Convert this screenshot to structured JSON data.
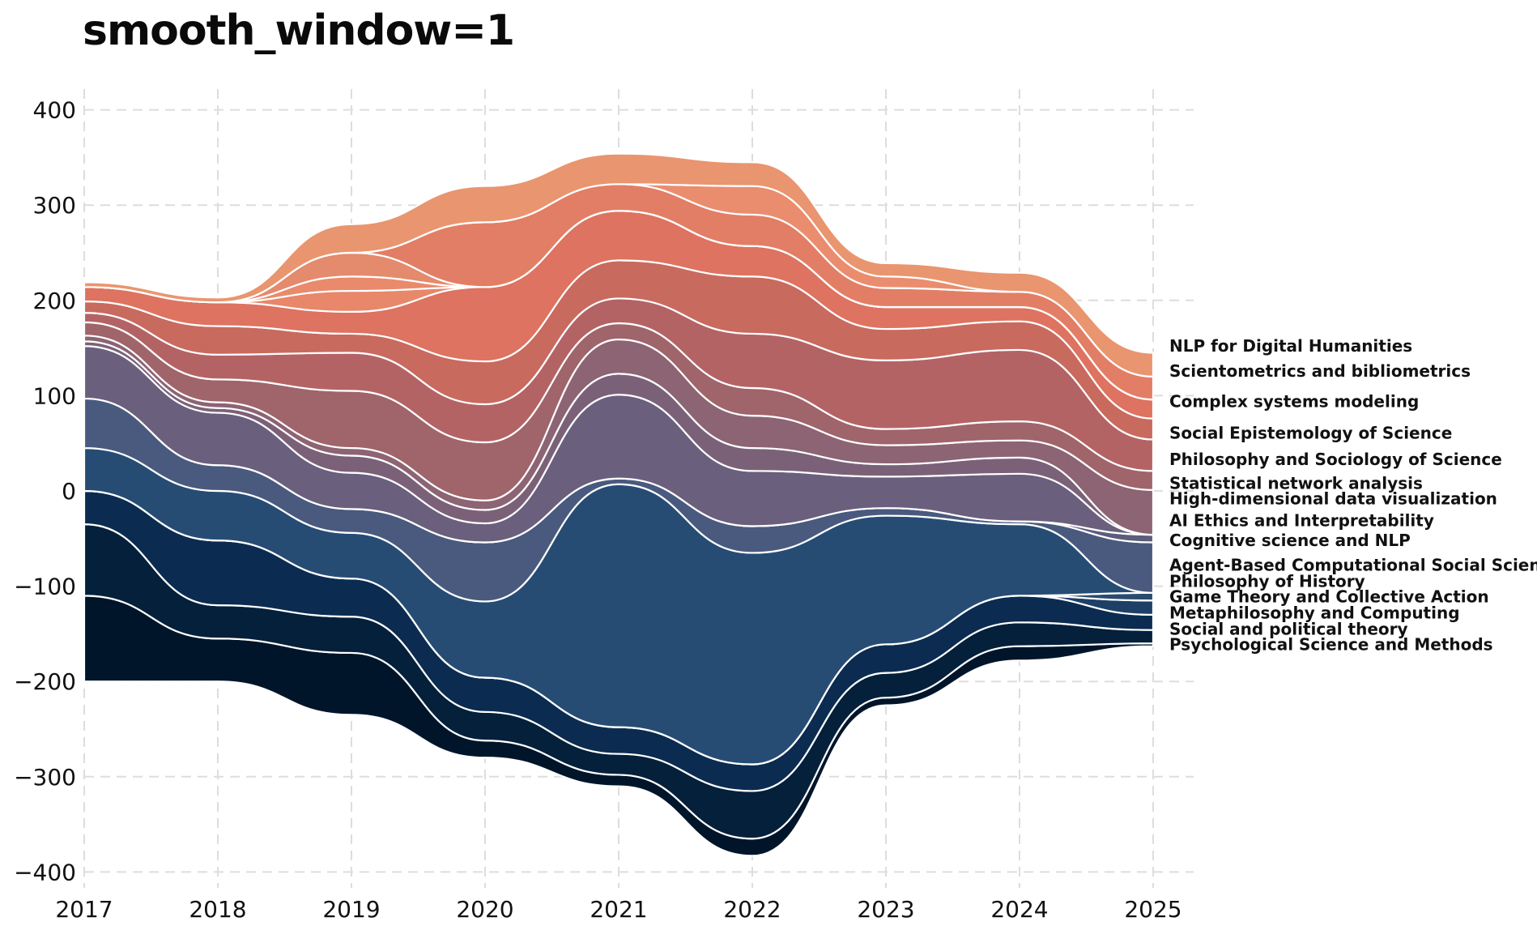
{
  "chart_data": {
    "type": "area",
    "title": "smooth_window=1",
    "xlabel": "",
    "ylabel": "",
    "x": [
      2017,
      2018,
      2019,
      2020,
      2021,
      2022,
      2023,
      2024,
      2025
    ],
    "xlim": [
      2017,
      2025
    ],
    "ylim": [
      -420,
      420
    ],
    "yticks": [
      400,
      300,
      200,
      100,
      0,
      -100,
      -200,
      -300,
      -400
    ],
    "ytick_labels": [
      "400",
      "300",
      "200",
      "100",
      "0",
      "−100",
      "−200",
      "−300",
      "−400"
    ],
    "xtick_labels": [
      "2017",
      "2018",
      "2019",
      "2020",
      "2021",
      "2022",
      "2023",
      "2024",
      "2025"
    ],
    "grid": true,
    "legend_placement": "right (labels at stream ends)",
    "baseline": [
      -200,
      -200,
      -235,
      -280,
      -310,
      -383,
      -225,
      -178,
      -163
    ],
    "series": [
      {
        "name": "Psychological Science and Methods",
        "color": "#01152a",
        "values": [
          90,
          45,
          65,
          18,
          12,
          18,
          8,
          15,
          3
        ]
      },
      {
        "name": "Social and political theory",
        "color": "#04203b",
        "values": [
          75,
          35,
          38,
          30,
          22,
          50,
          26,
          25,
          14
        ]
      },
      {
        "name": "Metaphilosophy and Computing",
        "color": "#0b2c50",
        "values": [
          35,
          68,
          40,
          36,
          28,
          28,
          30,
          28,
          16
        ]
      },
      {
        "name": "Game Theory and Collective Action",
        "color": "#1e4066",
        "values": [
          0,
          0,
          0,
          0,
          0,
          0,
          0,
          0,
          15
        ]
      },
      {
        "name": "Philosophy of History",
        "color": "#2a4a70",
        "values": [
          0,
          0,
          0,
          0,
          0,
          0,
          0,
          0,
          8
        ]
      },
      {
        "name": "Agent-Based Computational Social Science",
        "color": "#274c74",
        "values": [
          45,
          52,
          48,
          80,
          255,
          222,
          135,
          75,
          0
        ]
      },
      {
        "name": "Cognitive science and NLP",
        "color": "#4a5a7e",
        "values": [
          52,
          27,
          25,
          62,
          6,
          28,
          8,
          3,
          53
        ]
      },
      {
        "name": "AI Ethics and Interpretability",
        "color": "#5c5c7c",
        "values": [
          0,
          0,
          0,
          0,
          0,
          0,
          0,
          0,
          8
        ]
      },
      {
        "name": "High-dimensional data visualization",
        "color": "#6a5f7d",
        "values": [
          55,
          55,
          38,
          20,
          88,
          58,
          33,
          50,
          0
        ]
      },
      {
        "name": "Statistical network analysis",
        "color": "#7a6178",
        "values": [
          5,
          5,
          18,
          14,
          22,
          24,
          13,
          17,
          0
        ]
      },
      {
        "name": "Philosophy and Sociology of Science",
        "color": "#8c6473",
        "values": [
          6,
          6,
          8,
          10,
          36,
          34,
          20,
          18,
          47
        ]
      },
      {
        "name": "Social Epistemology of Science",
        "color": "#a0646b",
        "values": [
          14,
          24,
          60,
          61,
          17,
          29,
          17,
          20,
          20
        ]
      },
      {
        "name": "Complex systems modeling",
        "color": "#b46365",
        "values": [
          10,
          26,
          40,
          40,
          26,
          57,
          72,
          75,
          33
        ]
      },
      {
        "name": "Scientometrics and bibliometrics",
        "color": "#c96a5f",
        "values": [
          12,
          30,
          20,
          45,
          40,
          60,
          33,
          30,
          22
        ]
      },
      {
        "name": "NLP for Digital Humanities",
        "color": "#dd7360",
        "values": [
          15,
          25,
          23,
          78,
          52,
          32,
          23,
          15,
          20
        ]
      },
      {
        "name": "",
        "color": "#e8876a",
        "values": [
          0,
          0,
          22,
          0,
          0,
          0,
          0,
          0,
          0
        ]
      },
      {
        "name": "",
        "color": "#ea8a6c",
        "values": [
          0,
          0,
          15,
          0,
          0,
          0,
          0,
          0,
          0
        ]
      },
      {
        "name": "",
        "color": "#e48a6d",
        "values": [
          0,
          0,
          25,
          0,
          0,
          0,
          0,
          0,
          0
        ]
      },
      {
        "name": "",
        "color": "#e27e65",
        "values": [
          0,
          0,
          0,
          68,
          28,
          33,
          20,
          16,
          24
        ]
      },
      {
        "name": "",
        "color": "#ea8d6f",
        "values": [
          0,
          0,
          0,
          0,
          0,
          30,
          12,
          0,
          0
        ]
      },
      {
        "name": "",
        "color": "#e9956f",
        "values": [
          5,
          5,
          30,
          38,
          32,
          25,
          14,
          20,
          25
        ]
      }
    ],
    "legend_entries": [
      {
        "label": "NLP for Digital Humanities",
        "y": 152
      },
      {
        "label": "Scientometrics and bibliometrics",
        "y": 126
      },
      {
        "label": "Complex systems modeling",
        "y": 94
      },
      {
        "label": "Social Epistemology of Science",
        "y": 61
      },
      {
        "label": "Philosophy and Sociology of Science",
        "y": 33
      },
      {
        "label": "Statistical network analysis",
        "y": 8
      },
      {
        "label": "High-dimensional data visualization",
        "y": -8
      },
      {
        "label": "AI Ethics and Interpretability",
        "y": -31
      },
      {
        "label": "Cognitive science and NLP",
        "y": -52
      },
      {
        "label": "Agent-Based Computational Social Science",
        "y": -78
      },
      {
        "label": "Philosophy of History",
        "y": -95
      },
      {
        "label": "Game Theory and Collective Action",
        "y": -111
      },
      {
        "label": "Metaphilosophy and Computing",
        "y": -128
      },
      {
        "label": "Social and political theory",
        "y": -145
      },
      {
        "label": "Psychological Science and Methods",
        "y": -161
      }
    ]
  }
}
